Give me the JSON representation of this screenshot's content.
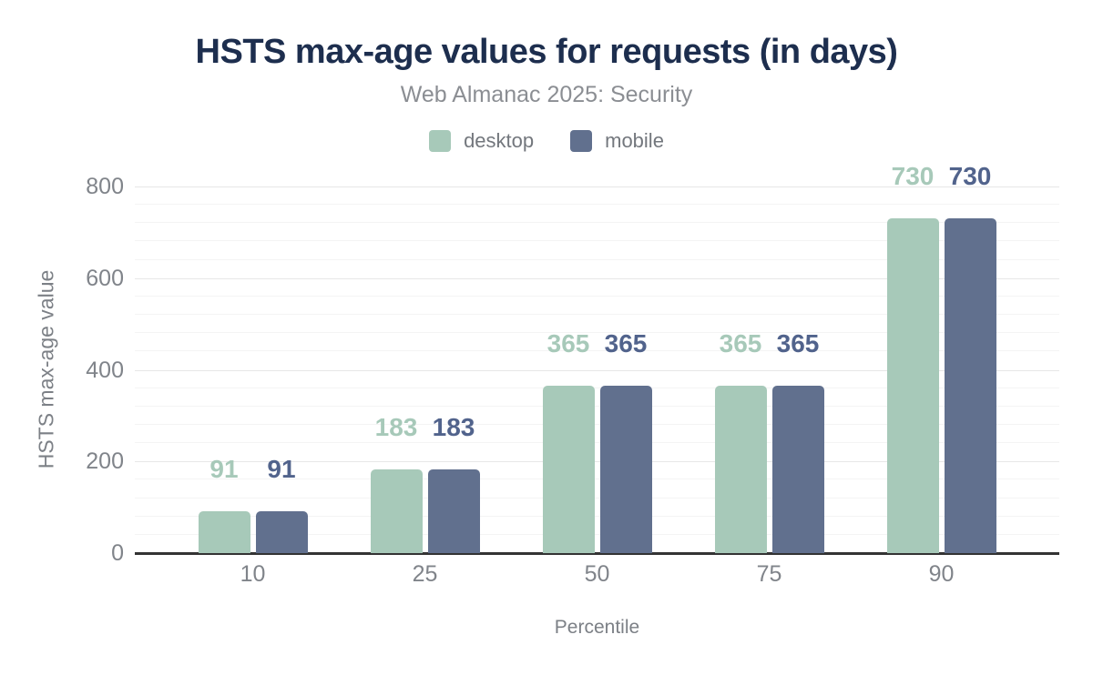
{
  "title": "HSTS max-age values for requests (in days)",
  "subtitle": "Web Almanac 2025: Security",
  "colors": {
    "title_text": "#1d2e4e",
    "desktop": "#a7c9b9",
    "mobile": "#61708e",
    "mobile_label": "#51638c",
    "desktop_label": "#a7c9b9",
    "axis_line": "#333333"
  },
  "chart_data": {
    "type": "bar",
    "title": "HSTS max-age values for requests (in days)",
    "subtitle": "Web Almanac 2025: Security",
    "categories": [
      "10",
      "25",
      "50",
      "75",
      "90"
    ],
    "series": [
      {
        "name": "desktop",
        "color": "#a7c9b9",
        "label_color": "#a7c9b9",
        "values": [
          91,
          183,
          365,
          365,
          730
        ]
      },
      {
        "name": "mobile",
        "color": "#61708e",
        "label_color": "#51638c",
        "values": [
          91,
          183,
          365,
          365,
          730
        ]
      }
    ],
    "xlabel": "Percentile",
    "ylabel": "HSTS max-age value",
    "ylim": [
      0,
      800
    ],
    "yticks": [
      0,
      200,
      400,
      600,
      800
    ],
    "minor_grid_step": 40,
    "grid": "on",
    "legend_position": "top",
    "data_labels": "above-bars"
  }
}
